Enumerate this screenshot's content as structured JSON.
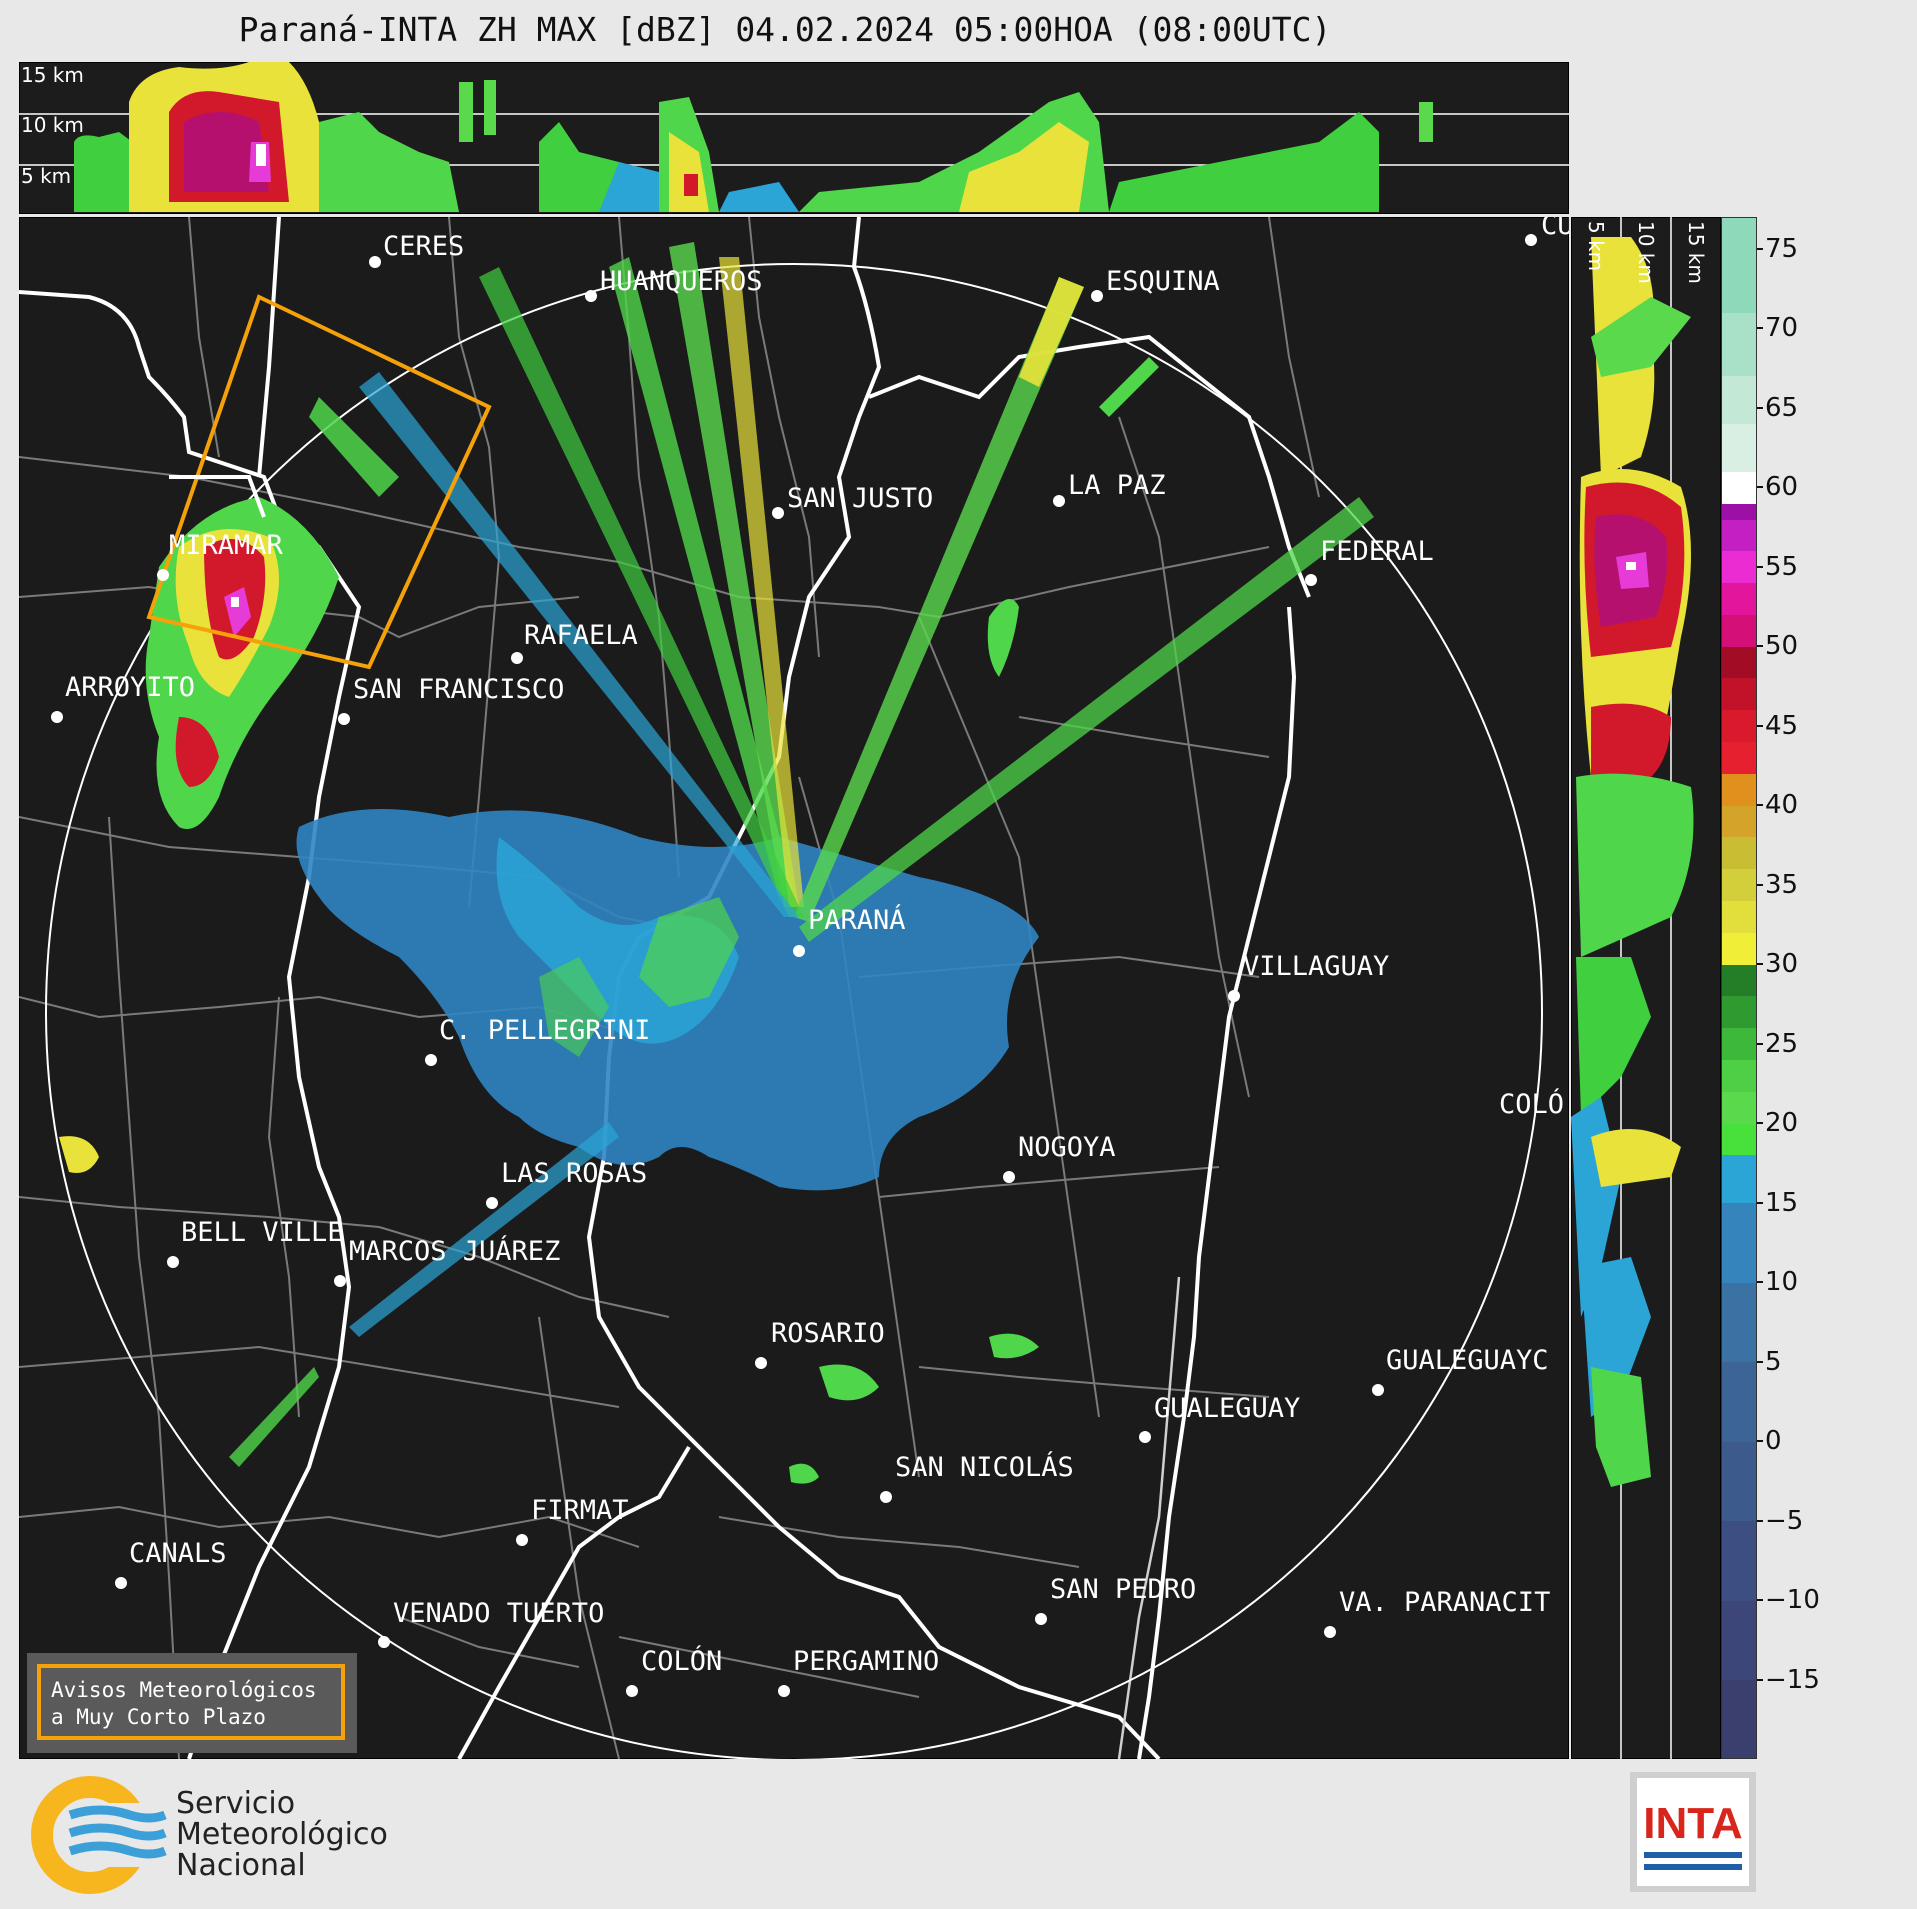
{
  "title": "Paraná-INTA ZH MAX [dBZ] 04.02.2024 05:00HOA (08:00UTC)",
  "top_panel": {
    "height_labels": [
      "15 km",
      "10 km",
      "5 km"
    ]
  },
  "side_panel": {
    "height_labels": [
      "5 km",
      "10 km",
      "15 km"
    ]
  },
  "colorbar": {
    "unit": "dBZ",
    "ticks": [
      "75",
      "70",
      "65",
      "60",
      "55",
      "50",
      "45",
      "40",
      "35",
      "30",
      "25",
      "20",
      "15",
      "10",
      "5",
      "0",
      "−5",
      "−10",
      "−15"
    ],
    "range": [
      -20,
      77
    ]
  },
  "cities": [
    {
      "name": "CERES"
    },
    {
      "name": "HUANQUEROS"
    },
    {
      "name": "ESQUINA"
    },
    {
      "name": "CU"
    },
    {
      "name": "SAN JUSTO"
    },
    {
      "name": "LA PAZ"
    },
    {
      "name": "MIRAMAR"
    },
    {
      "name": "FEDERAL"
    },
    {
      "name": "RAFAELA"
    },
    {
      "name": "ARROYITO"
    },
    {
      "name": "SAN FRANCISCO"
    },
    {
      "name": "PARANÁ"
    },
    {
      "name": "VILLAGUAY"
    },
    {
      "name": "C. PELLEGRINI"
    },
    {
      "name": "COLÓ"
    },
    {
      "name": "NOGOYA"
    },
    {
      "name": "LAS ROSAS"
    },
    {
      "name": "BELL VILLE"
    },
    {
      "name": "MARCOS JUÁREZ"
    },
    {
      "name": "ROSARIO"
    },
    {
      "name": "GUALEGUAYC"
    },
    {
      "name": "GUALEGUAY"
    },
    {
      "name": "SAN NICOLÁS"
    },
    {
      "name": "FIRMAT"
    },
    {
      "name": "CANALS"
    },
    {
      "name": "SAN PEDRO"
    },
    {
      "name": "VENADO TUERTO"
    },
    {
      "name": "VA. PARANACIT"
    },
    {
      "name": "COLÓN"
    },
    {
      "name": "PERGAMINO"
    }
  ],
  "warning_box": {
    "line1": "Avisos Meteorológicos",
    "line2": "a Muy Corto Plazo",
    "border_color": "#f5a10a"
  },
  "logo_smn": {
    "line1": "Servicio",
    "line2": "Meteorológico",
    "line3": "Nacional"
  },
  "logo_inta": {
    "text": "INTA",
    "color": "#d8261c"
  }
}
